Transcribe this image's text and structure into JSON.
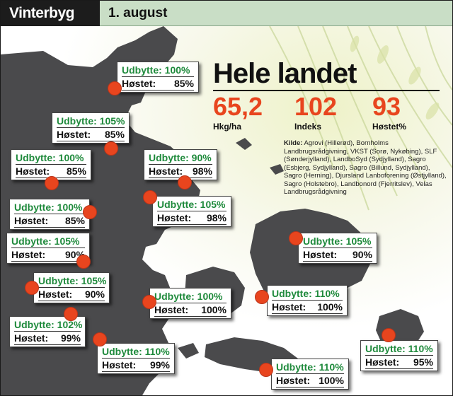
{
  "header": {
    "title": "Vinterbyg",
    "date": "1. august"
  },
  "summary": {
    "title": "Hele landet",
    "values": [
      "65,2",
      "102",
      "93"
    ],
    "labels": [
      "Hkg/ha",
      "Indeks",
      "Høstet%"
    ]
  },
  "source": {
    "label": "Kilde:",
    "text": "Agrovi (Hillerød), Bornholms Landbrugsrådgivning, VKST (Sorø, Nykøbing), SLF (Sønderjylland), LandboSyd (Sydjylland), Sagro (Esbjerg, Sydjylland), Sagro (Billund, Sydjylland), Sagro (Herning), Djursland Lanboforening (Østjylland), Sagro (Holstebro), Landbonord (Fjerritslev), Velas Landbrugsrådgivning"
  },
  "colors": {
    "dot": "#e8451e",
    "yield_text": "#1f8a3c",
    "land": "#4a4a4c",
    "header_dark": "#1c1c1c",
    "header_light": "#c9dec6"
  },
  "regions": [
    {
      "yield_label": "Udbytte:",
      "yield_value": "100%",
      "harvest_label": "Høstet:",
      "harvest_value": "85%"
    },
    {
      "yield_label": "Udbytte:",
      "yield_value": "105%",
      "harvest_label": "Høstet:",
      "harvest_value": "85%"
    },
    {
      "yield_label": "Udbytte:",
      "yield_value": "100%",
      "harvest_label": "Høstet:",
      "harvest_value": "85%"
    },
    {
      "yield_label": "Udbytte:",
      "yield_value": "90%",
      "harvest_label": "Høstet:",
      "harvest_value": "98%"
    },
    {
      "yield_label": "Udbytte:",
      "yield_value": "100%",
      "harvest_label": "Høstet:",
      "harvest_value": "85%"
    },
    {
      "yield_label": "Udbytte:",
      "yield_value": "105%",
      "harvest_label": "Høstet:",
      "harvest_value": "98%"
    },
    {
      "yield_label": "Udbytte:",
      "yield_value": "105%",
      "harvest_label": "Høstet:",
      "harvest_value": "90%"
    },
    {
      "yield_label": "Udbytte:",
      "yield_value": "105%",
      "harvest_label": "Høstet:",
      "harvest_value": "90%"
    },
    {
      "yield_label": "Udbytte:",
      "yield_value": "105%",
      "harvest_label": "Høstet:",
      "harvest_value": "90%"
    },
    {
      "yield_label": "Udbytte:",
      "yield_value": "100%",
      "harvest_label": "Høstet:",
      "harvest_value": "100%"
    },
    {
      "yield_label": "Udbytte:",
      "yield_value": "110%",
      "harvest_label": "Høstet:",
      "harvest_value": "100%"
    },
    {
      "yield_label": "Udbytte:",
      "yield_value": "102%",
      "harvest_label": "Høstet:",
      "harvest_value": "99%"
    },
    {
      "yield_label": "Udbytte:",
      "yield_value": "110%",
      "harvest_label": "Høstet:",
      "harvest_value": "99%"
    },
    {
      "yield_label": "Udbytte:",
      "yield_value": "110%",
      "harvest_label": "Høstet:",
      "harvest_value": "100%"
    },
    {
      "yield_label": "Udbytte:",
      "yield_value": "110%",
      "harvest_label": "Høstet:",
      "harvest_value": "95%"
    }
  ]
}
